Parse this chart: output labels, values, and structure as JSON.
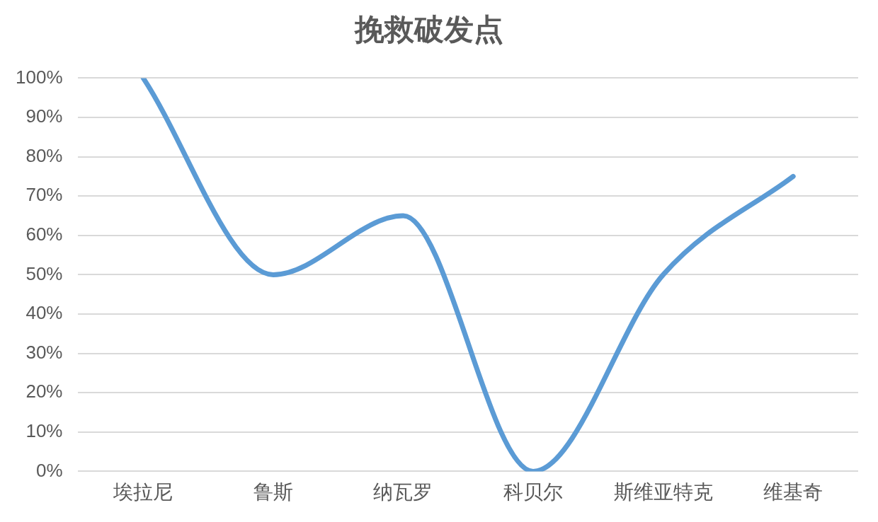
{
  "chart_data": {
    "type": "line",
    "title": "挽救破发点",
    "categories": [
      "埃拉尼",
      "鲁斯",
      "纳瓦罗",
      "科贝尔",
      "斯维亚特克",
      "维基奇"
    ],
    "values": [
      100,
      50,
      65,
      0,
      50,
      75
    ],
    "color": "#5b9bd5",
    "ylim": [
      0,
      100
    ],
    "yticks": [
      {
        "value": 0,
        "label": "0%"
      },
      {
        "value": 10,
        "label": "10%"
      },
      {
        "value": 20,
        "label": "20%"
      },
      {
        "value": 30,
        "label": "30%"
      },
      {
        "value": 40,
        "label": "40%"
      },
      {
        "value": 50,
        "label": "50%"
      },
      {
        "value": 60,
        "label": "60%"
      },
      {
        "value": 70,
        "label": "70%"
      },
      {
        "value": 80,
        "label": "80%"
      },
      {
        "value": 90,
        "label": "90%"
      },
      {
        "value": 100,
        "label": "100%"
      }
    ],
    "grid": "y",
    "legend": false,
    "marker": "none",
    "line_style": "solid"
  }
}
